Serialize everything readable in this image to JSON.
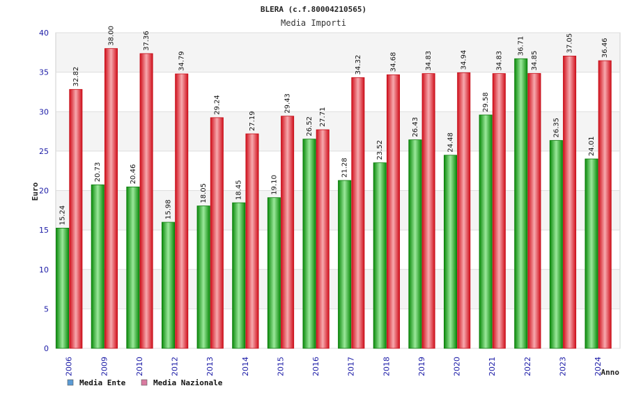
{
  "chart_data": {
    "type": "bar",
    "title": "BLERA (c.f.80004210565)",
    "subtitle": "Media Importi",
    "xlabel": "Anno",
    "ylabel": "Euro",
    "ylim": [
      0,
      40
    ],
    "yticks": [
      0,
      5,
      10,
      15,
      20,
      25,
      30,
      35,
      40
    ],
    "grid": true,
    "legend_position": "bottom-left",
    "categories": [
      "2006",
      "2009",
      "2010",
      "2012",
      "2013",
      "2014",
      "2015",
      "2016",
      "2017",
      "2018",
      "2019",
      "2020",
      "2021",
      "2022",
      "2023",
      "2024"
    ],
    "series": [
      {
        "name": "Media Ente",
        "color": "#11b511",
        "legend_color": "#5b9bd5",
        "values": [
          15.24,
          20.73,
          20.46,
          15.98,
          18.05,
          18.45,
          19.1,
          26.52,
          21.28,
          23.52,
          26.43,
          24.48,
          29.58,
          36.71,
          26.35,
          24.01
        ],
        "labels": [
          "15.24",
          "20.73",
          "20.46",
          "15.98",
          "18.05",
          "18.45",
          "19.10",
          "26.52",
          "21.28",
          "23.52",
          "26.43",
          "24.48",
          "29.58",
          "36.71",
          "26.35",
          "24.01"
        ]
      },
      {
        "name": "Media Nazionale",
        "color": "#e8202a",
        "legend_color": "#d97aa0",
        "values": [
          32.82,
          38.0,
          37.36,
          34.79,
          29.24,
          27.19,
          29.43,
          27.71,
          34.32,
          34.68,
          34.83,
          34.94,
          34.83,
          34.85,
          37.05,
          36.46
        ],
        "labels": [
          "32.82",
          "38.00",
          "37.36",
          "34.79",
          "29.24",
          "27.19",
          "29.43",
          "27.71",
          "34.32",
          "34.68",
          "34.83",
          "34.94",
          "34.83",
          "34.85",
          "37.05",
          "36.46"
        ]
      }
    ]
  }
}
